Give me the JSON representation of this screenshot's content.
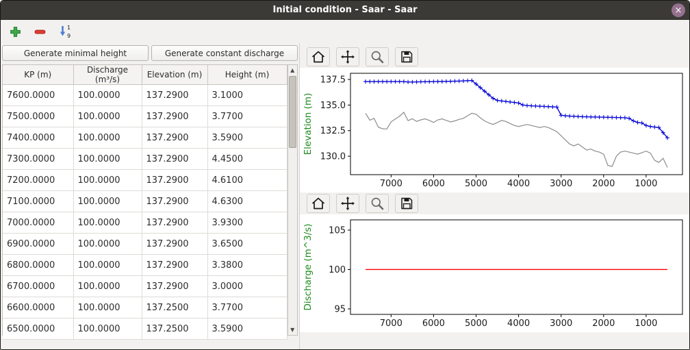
{
  "window": {
    "title": "Initial condition - Saar - Saar",
    "close_glyph": "×"
  },
  "main_toolbar": {
    "sort_top_digit": "1",
    "sort_bottom_digit": "9"
  },
  "scrollbar": {
    "up_glyph": "▲",
    "down_glyph": "▼"
  },
  "left_panel": {
    "buttons": {
      "generate_minimal_height": "Generate minimal height",
      "generate_constant_discharge": "Generate constant discharge"
    },
    "table": {
      "columns": [
        "KP (m)",
        "Discharge (m³/s)",
        "Elevation (m)",
        "Height (m)"
      ],
      "rows": [
        [
          "7600.0000",
          "100.0000",
          "137.2900",
          "3.1000"
        ],
        [
          "7500.0000",
          "100.0000",
          "137.2900",
          "3.7700"
        ],
        [
          "7400.0000",
          "100.0000",
          "137.2900",
          "3.5900"
        ],
        [
          "7300.0000",
          "100.0000",
          "137.2900",
          "4.4500"
        ],
        [
          "7200.0000",
          "100.0000",
          "137.2900",
          "4.6100"
        ],
        [
          "7100.0000",
          "100.0000",
          "137.2900",
          "4.6300"
        ],
        [
          "7000.0000",
          "100.0000",
          "137.2900",
          "3.9300"
        ],
        [
          "6900.0000",
          "100.0000",
          "137.2900",
          "3.6500"
        ],
        [
          "6800.0000",
          "100.0000",
          "137.2900",
          "3.3800"
        ],
        [
          "6700.0000",
          "100.0000",
          "137.2900",
          "3.0000"
        ],
        [
          "6600.0000",
          "100.0000",
          "137.2500",
          "3.7700"
        ],
        [
          "6500.0000",
          "100.0000",
          "137.2500",
          "3.5900"
        ]
      ]
    }
  },
  "chart_data": [
    {
      "type": "line",
      "title": "",
      "xlabel": "",
      "ylabel": "Elevation (m)",
      "ylabel_color": "#1d8b1d",
      "xlim": [
        7955,
        145
      ],
      "ylim": [
        128.2,
        138.1
      ],
      "xticks": [
        7000,
        6000,
        5000,
        4000,
        3000,
        2000,
        1000
      ],
      "xtick_labels": [
        "7000",
        "6000",
        "5000",
        "4000",
        "3000",
        "2000",
        "1000"
      ],
      "yticks": [
        137.5,
        135.0,
        132.5,
        130.0
      ],
      "ytick_labels": [
        "137.5",
        "135.0",
        "132.5",
        "130.0"
      ],
      "series": [
        {
          "name": "water-surface-elevation",
          "color": "#0b0bd6",
          "marker": "plus",
          "line_width": 1.4,
          "x": [
            7600,
            7500,
            7400,
            7300,
            7200,
            7100,
            7000,
            6900,
            6800,
            6700,
            6600,
            6500,
            6400,
            6300,
            6200,
            6100,
            6000,
            5900,
            5800,
            5700,
            5600,
            5500,
            5400,
            5300,
            5200,
            5100,
            5000,
            4900,
            4800,
            4700,
            4600,
            4500,
            4400,
            4300,
            4200,
            4100,
            4000,
            3900,
            3800,
            3700,
            3600,
            3500,
            3400,
            3300,
            3200,
            3100,
            3000,
            2900,
            2800,
            2700,
            2600,
            2500,
            2400,
            2300,
            2200,
            2100,
            2000,
            1900,
            1800,
            1700,
            1600,
            1500,
            1400,
            1300,
            1200,
            1100,
            1000,
            900,
            800,
            700,
            600,
            500
          ],
          "y": [
            137.29,
            137.29,
            137.29,
            137.29,
            137.29,
            137.29,
            137.29,
            137.29,
            137.29,
            137.29,
            137.25,
            137.25,
            137.26,
            137.27,
            137.28,
            137.28,
            137.29,
            137.3,
            137.3,
            137.31,
            137.32,
            137.33,
            137.34,
            137.36,
            137.38,
            137.4,
            137.05,
            136.7,
            136.35,
            136.0,
            135.65,
            135.45,
            135.4,
            135.35,
            135.3,
            135.25,
            135.2,
            135.0,
            134.95,
            134.92,
            134.9,
            134.88,
            134.86,
            134.84,
            134.82,
            134.8,
            134.0,
            133.95,
            133.92,
            133.9,
            133.88,
            133.86,
            133.85,
            133.84,
            133.83,
            133.82,
            133.81,
            133.8,
            133.79,
            133.78,
            133.77,
            133.76,
            133.7,
            133.45,
            133.3,
            133.25,
            133.0,
            132.9,
            132.85,
            132.8,
            132.3,
            131.8
          ]
        },
        {
          "name": "bottom-elevation",
          "color": "#8c8c8c",
          "marker": "none",
          "line_width": 1.2,
          "x": [
            7600,
            7500,
            7400,
            7300,
            7200,
            7100,
            7000,
            6900,
            6800,
            6700,
            6600,
            6500,
            6400,
            6300,
            6200,
            6100,
            6000,
            5900,
            5800,
            5700,
            5600,
            5500,
            5400,
            5300,
            5200,
            5100,
            5000,
            4900,
            4800,
            4700,
            4600,
            4500,
            4400,
            4300,
            4200,
            4100,
            4000,
            3900,
            3800,
            3700,
            3600,
            3500,
            3400,
            3300,
            3200,
            3100,
            3000,
            2900,
            2800,
            2700,
            2600,
            2500,
            2400,
            2300,
            2200,
            2100,
            2000,
            1900,
            1800,
            1700,
            1600,
            1500,
            1400,
            1300,
            1200,
            1100,
            1000,
            900,
            800,
            700,
            600,
            500
          ],
          "y": [
            134.19,
            133.52,
            133.7,
            132.84,
            132.68,
            132.66,
            133.36,
            133.64,
            133.91,
            134.29,
            133.48,
            133.66,
            133.4,
            133.55,
            133.65,
            133.5,
            133.3,
            133.55,
            133.65,
            133.5,
            133.35,
            133.45,
            133.6,
            133.7,
            133.95,
            134.2,
            134.1,
            133.75,
            133.45,
            133.25,
            133.1,
            133.3,
            133.5,
            133.4,
            133.2,
            133.0,
            132.9,
            133.0,
            133.1,
            133.0,
            132.9,
            132.8,
            132.9,
            132.8,
            132.6,
            132.4,
            132.0,
            131.6,
            131.2,
            131.0,
            131.2,
            130.9,
            130.6,
            130.7,
            130.5,
            130.4,
            130.2,
            129.1,
            129.0,
            130.0,
            130.4,
            130.5,
            130.4,
            130.3,
            130.2,
            130.35,
            130.5,
            130.3,
            129.6,
            129.4,
            129.8,
            128.9
          ]
        }
      ]
    },
    {
      "type": "line",
      "title": "",
      "xlabel": "",
      "ylabel": "Discharge (m^3/s)",
      "ylabel_color": "#1d8b1d",
      "xlim": [
        7955,
        145
      ],
      "ylim": [
        94.3,
        106.3
      ],
      "xticks": [
        7000,
        6000,
        5000,
        4000,
        3000,
        2000,
        1000
      ],
      "xtick_labels": [
        "7000",
        "6000",
        "5000",
        "4000",
        "3000",
        "2000",
        "1000"
      ],
      "yticks": [
        105,
        100,
        95
      ],
      "ytick_labels": [
        "105",
        "100",
        "95"
      ],
      "series": [
        {
          "name": "constant-discharge",
          "color": "#ff0000",
          "marker": "none",
          "line_width": 1.4,
          "x": [
            7600,
            500
          ],
          "y": [
            100,
            100
          ]
        }
      ]
    }
  ]
}
